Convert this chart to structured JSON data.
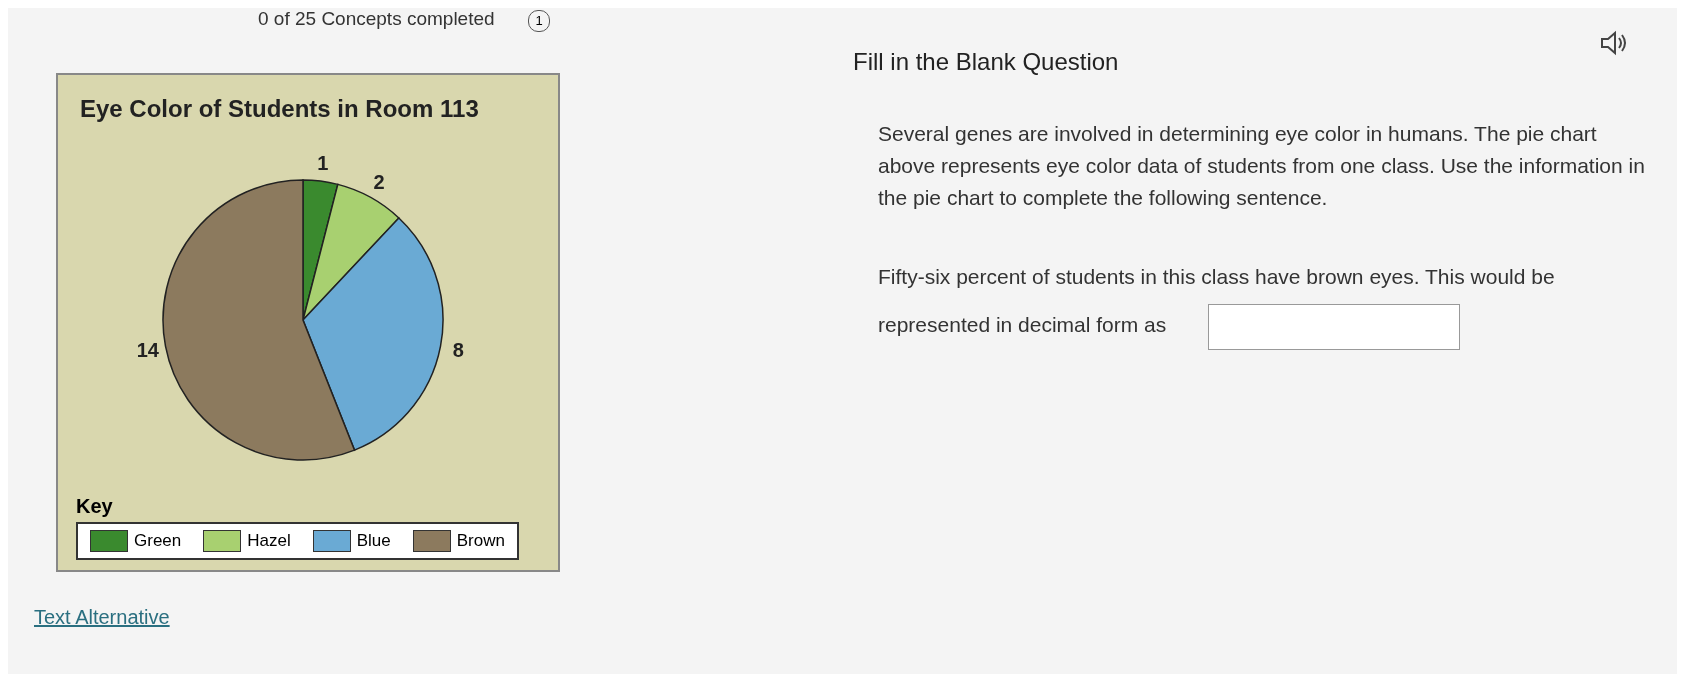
{
  "chart_data": {
    "type": "pie",
    "title": "Eye Color of Students in Room 113",
    "categories": [
      "Green",
      "Hazel",
      "Blue",
      "Brown"
    ],
    "values": [
      1,
      2,
      8,
      14
    ],
    "colors": [
      "#3a8a2e",
      "#a8d070",
      "#6aaad4",
      "#8c7a5e"
    ],
    "data_labels": true,
    "legend": "bottom",
    "legend_title": "Key",
    "annotations": [
      "0 of 25 Concepts completed",
      "1",
      "Fill in the Blank Question",
      "Several genes are involved in determining eye color in humans. The pie chart above represents eye color data of students from one class. Use the information in the pie chart to complete the following sentence.",
      "Fifty-six percent of students in this class have brown eyes. This would be represented in decimal form as",
      "Text Alternative"
    ]
  }
}
